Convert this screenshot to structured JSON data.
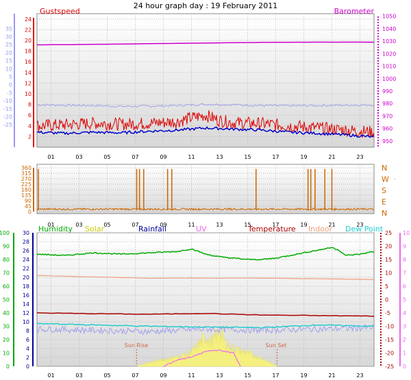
{
  "title": "24 hour graph day : 19 February 2011",
  "colors": {
    "gust": "#dd0000",
    "wind": "#0000cc",
    "temp_axis_blue": "#9999ee",
    "baro": "#cc00cc",
    "winddir": "#cc6600",
    "humidity": "#00aa00",
    "solar": "#cccc00",
    "rainfall": "#000099",
    "uv": "#ee66ee",
    "temperature": "#aa0000",
    "indoor": "#f0a080",
    "dewpoint": "#22cccc",
    "grid": "#bbbbbb",
    "sunline": "#cc6644"
  },
  "chart_data": [
    {
      "type": "line",
      "title": "24 hour graph day : 19 February 2011",
      "x_ticks": [
        "01",
        "03",
        "05",
        "07",
        "09",
        "11",
        "13",
        "15",
        "17",
        "19",
        "21",
        "23"
      ],
      "left_axis_gust": {
        "label": "Gustspeed",
        "ticks": [
          2,
          4,
          6,
          8,
          10,
          12,
          14,
          16,
          18,
          20,
          22,
          24
        ],
        "ylim": [
          0,
          25
        ]
      },
      "left_axis_outer": {
        "ticks": [
          35,
          30,
          25,
          20,
          15,
          10,
          5,
          0,
          -5,
          -10,
          -15,
          -20,
          -25
        ]
      },
      "right_axis": {
        "label": "Barometer",
        "ticks": [
          1050,
          1040,
          1030,
          1020,
          1010,
          1000,
          990,
          980,
          970,
          960,
          950
        ],
        "ylim": [
          945,
          1052
        ]
      },
      "series": [
        {
          "name": "Barometer",
          "axis": "right",
          "x": [
            0,
            4,
            8,
            12,
            16,
            20,
            24
          ],
          "values": [
            1027,
            1027.4,
            1028,
            1028.5,
            1029,
            1029.2,
            1029.2
          ]
        },
        {
          "name": "Gustspeed",
          "axis": "left",
          "x": [
            0,
            2,
            4,
            6,
            8,
            10,
            11,
            12,
            13,
            14,
            16,
            18,
            20,
            22,
            24
          ],
          "values": [
            4,
            4.2,
            4.5,
            4.3,
            4.5,
            4.8,
            5.5,
            6,
            5,
            4.6,
            4.4,
            4,
            3.6,
            3.2,
            2.8
          ]
        },
        {
          "axis": "left",
          "x": [
            0,
            2,
            4,
            6,
            8,
            10,
            12,
            14,
            16,
            18,
            20,
            22,
            24
          ],
          "values": [
            2.8,
            2.6,
            2.8,
            2.7,
            3,
            3.2,
            3.6,
            3.4,
            3.2,
            2.8,
            2.6,
            2.3,
            1.9
          ]
        },
        {
          "axis": "outer",
          "x": [
            0,
            2,
            4,
            6,
            8,
            10,
            12,
            14,
            16,
            18,
            20,
            22,
            24
          ],
          "values": [
            -12.5,
            -12.8,
            -13,
            -13.5,
            -13.4,
            -13,
            -12.2,
            -12.5,
            -13,
            -13.2,
            -13,
            -12.8,
            -12.6
          ]
        }
      ]
    },
    {
      "type": "scatter",
      "x_ticks": [
        "01",
        "03",
        "05",
        "07",
        "09",
        "11",
        "13",
        "15",
        "17",
        "19",
        "21",
        "23"
      ],
      "left_ticks": [
        360,
        315,
        270,
        225,
        180,
        135,
        90,
        45,
        0
      ],
      "ylim": [
        0,
        360
      ],
      "right_labels": [
        "N",
        "W",
        "S",
        "E",
        "N"
      ],
      "right_extra": ".",
      "spikes_x": [
        0.1,
        7.1,
        7.3,
        7.6,
        9.3,
        9.6,
        15.6,
        19.3,
        19.5,
        19.8,
        20.5,
        21
      ],
      "baseline": 20
    },
    {
      "type": "line",
      "x_ticks": [
        "01",
        "03",
        "05",
        "07",
        "09",
        "11",
        "13",
        "15",
        "17",
        "19",
        "21",
        "23"
      ],
      "legend": [
        "Humidity",
        "Solar",
        "Rainfall",
        "UV",
        "Temperature",
        "Indoor",
        "Dew Point"
      ],
      "humidity_axis": {
        "ticks": [
          100,
          90,
          80,
          70,
          60,
          50,
          40,
          30,
          20,
          10,
          0
        ],
        "ylim": [
          0,
          100
        ]
      },
      "rainfall_axis": {
        "ticks": [
          30,
          28,
          26,
          24,
          22,
          20,
          18,
          16,
          14,
          12,
          10,
          8,
          6,
          4,
          2,
          0
        ],
        "ylim": [
          0,
          30
        ]
      },
      "temperature_axis": {
        "ticks": [
          25,
          20,
          15,
          10,
          5,
          0,
          -5,
          -10,
          -15,
          -20,
          -25
        ],
        "ylim": [
          -25,
          25
        ]
      },
      "uv_axis": {
        "ticks": [
          10,
          9,
          8,
          7,
          6,
          5,
          4,
          3,
          2,
          1,
          0
        ],
        "ylim": [
          0,
          10
        ]
      },
      "sun_rise": {
        "label": "Sun Rise",
        "x": 7.1
      },
      "sun_set": {
        "label": "Sun Set",
        "x": 17.1
      },
      "series": [
        {
          "name": "Humidity",
          "axis": "humidity",
          "x": [
            0,
            2,
            4,
            6,
            8,
            10,
            11,
            12,
            13,
            14,
            15,
            16,
            17,
            18,
            19,
            20,
            21,
            21.5,
            22,
            23,
            24
          ],
          "values": [
            84,
            83,
            85,
            84,
            85,
            86,
            88,
            84,
            82,
            81,
            80,
            80,
            81,
            83,
            85,
            87,
            89,
            87,
            83,
            84,
            86
          ]
        },
        {
          "name": "Indoor",
          "axis": "temperature",
          "x": [
            0,
            4,
            8,
            12,
            16,
            20,
            24
          ],
          "values": [
            9,
            8.5,
            8,
            8,
            8,
            7.8,
            7.5
          ]
        },
        {
          "name": "Temperature",
          "axis": "temperature",
          "x": [
            0,
            4,
            8,
            12,
            16,
            20,
            24
          ],
          "values": [
            -5,
            -5.3,
            -5.5,
            -5.2,
            -5.8,
            -6,
            -6.2
          ]
        },
        {
          "name": "Dew Point",
          "axis": "temperature",
          "x": [
            0,
            4,
            8,
            12,
            16,
            20,
            24
          ],
          "values": [
            -9,
            -9.5,
            -10,
            -10.3,
            -10.5,
            -9.5,
            -10
          ]
        },
        {
          "axis": "temperature",
          "x": [
            0,
            4,
            8,
            12,
            16,
            20,
            24
          ],
          "values": [
            -11,
            -11.5,
            -12,
            -11,
            -11.5,
            -11,
            -10.5
          ]
        },
        {
          "name": "Solar",
          "axis": "uv",
          "x": [
            7.1,
            8,
            9,
            10,
            11,
            11.5,
            12,
            12.5,
            13,
            13.5,
            14,
            15,
            16,
            17.1
          ],
          "values": [
            0,
            0.3,
            0.5,
            0.7,
            1.0,
            1.6,
            2.2,
            1.8,
            2.6,
            1.6,
            1.3,
            1.0,
            0.6,
            0
          ]
        },
        {
          "name": "UV",
          "axis": "uv",
          "x": [
            9,
            10,
            11,
            12,
            13,
            14,
            14.5
          ],
          "values": [
            0,
            0.5,
            0.7,
            1.1,
            1.2,
            1.0,
            0
          ]
        }
      ]
    }
  ]
}
